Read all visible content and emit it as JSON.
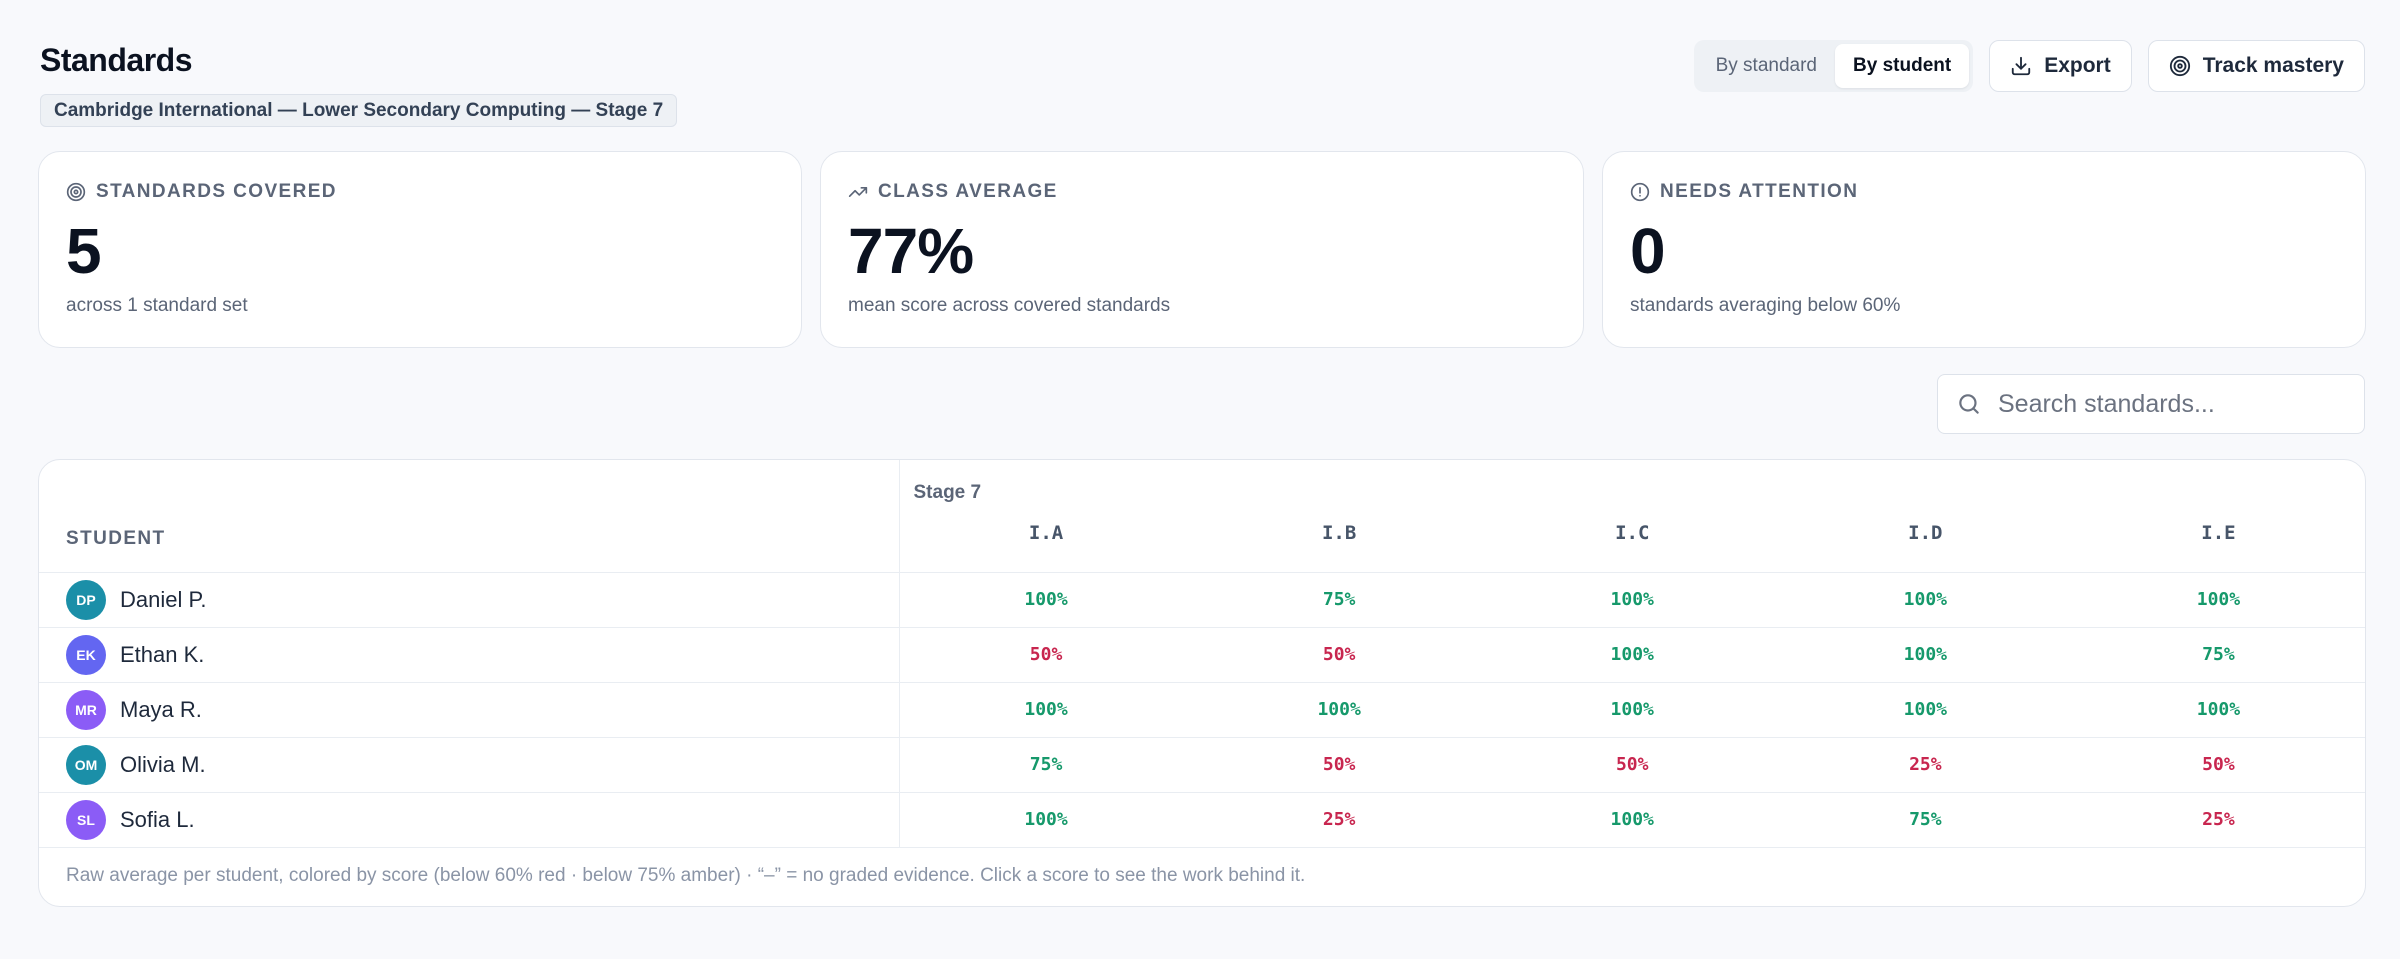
{
  "header": {
    "title": "Standards",
    "badge": "Cambridge International — Lower Secondary Computing — Stage 7",
    "view_toggle": [
      "By standard",
      "By student"
    ],
    "export_label": "Export",
    "track_label": "Track mastery"
  },
  "cards": [
    {
      "label": "STANDARDS COVERED",
      "value": "5",
      "sub": "across 1 standard set",
      "icon": "target-icon"
    },
    {
      "label": "CLASS AVERAGE",
      "value": "77%",
      "sub": "mean score across covered standards",
      "icon": "trending-up-icon"
    },
    {
      "label": "NEEDS ATTENTION",
      "value": "0",
      "sub": "standards averaging below 60%",
      "icon": "alert-circle-icon"
    }
  ],
  "search": {
    "placeholder": "Search standards..."
  },
  "table": {
    "student_header": "STUDENT",
    "stage": "Stage 7",
    "codes": [
      "I.A",
      "I.B",
      "I.C",
      "I.D",
      "I.E"
    ],
    "rows": [
      {
        "initials": "DP",
        "name": "Daniel P.",
        "color": "#1b8fa8",
        "scores": [
          "100%",
          "75%",
          "100%",
          "100%",
          "100%"
        ]
      },
      {
        "initials": "EK",
        "name": "Ethan K.",
        "color": "#6366f1",
        "scores": [
          "50%",
          "50%",
          "100%",
          "100%",
          "75%"
        ]
      },
      {
        "initials": "MR",
        "name": "Maya R.",
        "color": "#8b5cf6",
        "scores": [
          "100%",
          "100%",
          "100%",
          "100%",
          "100%"
        ]
      },
      {
        "initials": "OM",
        "name": "Olivia M.",
        "color": "#1b8fa8",
        "scores": [
          "75%",
          "50%",
          "50%",
          "25%",
          "50%"
        ]
      },
      {
        "initials": "SL",
        "name": "Sofia L.",
        "color": "#8b5cf6",
        "scores": [
          "100%",
          "25%",
          "100%",
          "75%",
          "25%"
        ]
      }
    ],
    "footnote": "Raw average per student, colored by score (below 60% red · below 75% amber) · “–” = no graded evidence. Click a score to see the work behind it."
  },
  "colors": {
    "good": "#16996b",
    "bad": "#c8264f",
    "accent": "#0b1220"
  }
}
